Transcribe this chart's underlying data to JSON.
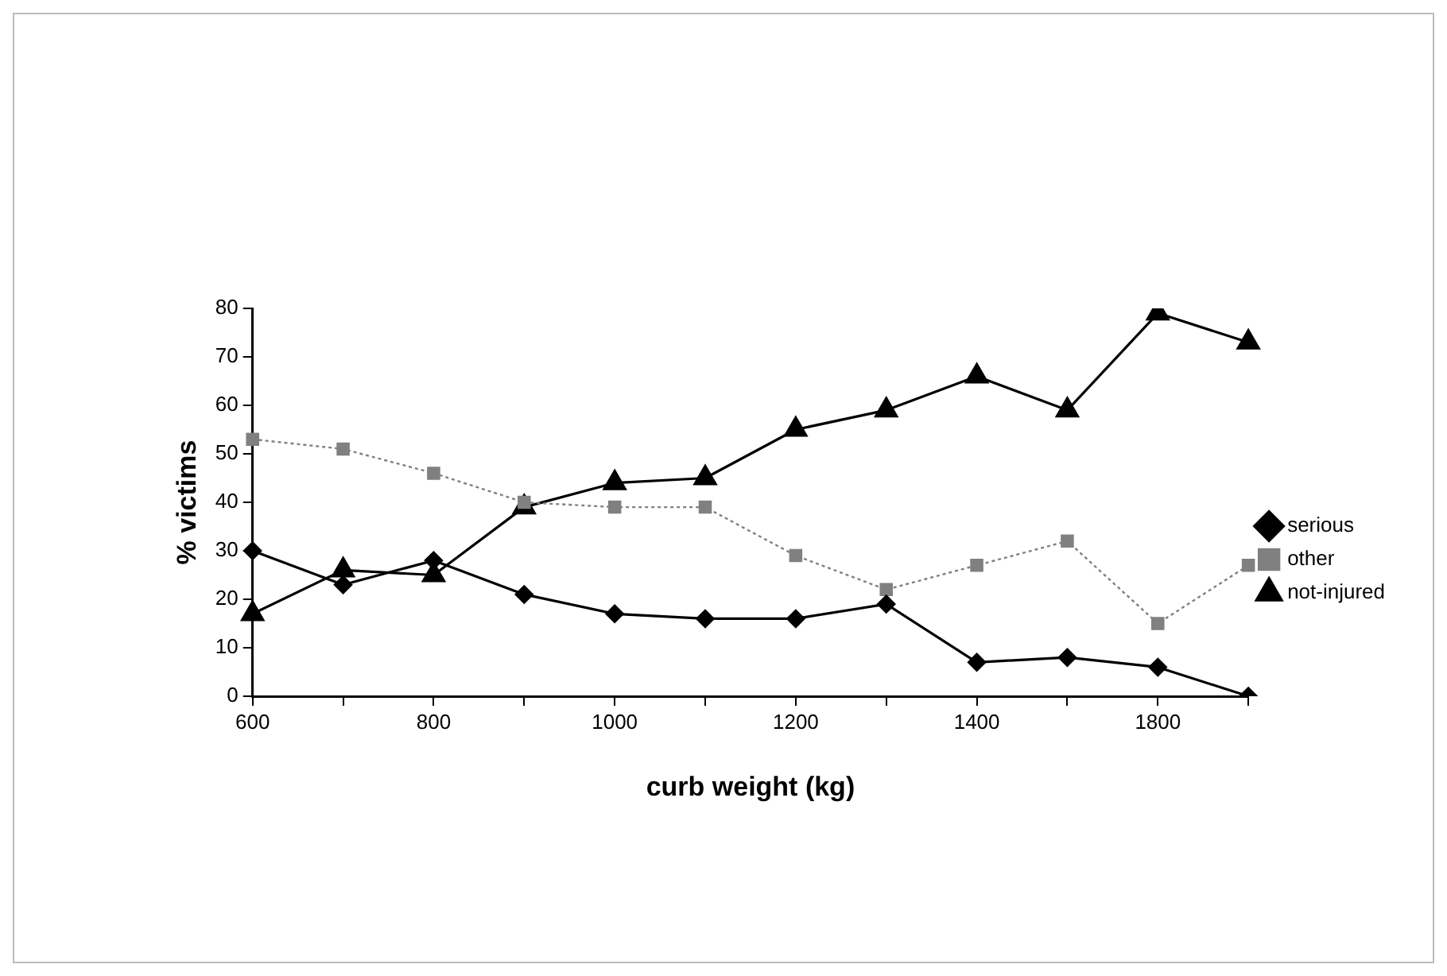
{
  "chart_data": {
    "type": "line",
    "xlabel": "curb weight (kg)",
    "ylabel": "% victims",
    "categories": [
      "600",
      null,
      "800",
      null,
      "1000",
      null,
      "1200",
      null,
      "1400",
      null,
      "1800",
      null
    ],
    "series": [
      {
        "name": "serious",
        "color": "#000000",
        "marker": "diamond",
        "line_style": "solid",
        "values": [
          30,
          23,
          28,
          21,
          17,
          16,
          16,
          19,
          7,
          8,
          6,
          0
        ]
      },
      {
        "name": "other",
        "color": "#808080",
        "marker": "square",
        "line_style": "dotted",
        "values": [
          53,
          51,
          46,
          40,
          39,
          39,
          29,
          22,
          27,
          32,
          15,
          27
        ]
      },
      {
        "name": "not-injured",
        "color": "#000000",
        "marker": "triangle",
        "line_style": "solid",
        "values": [
          17,
          26,
          25,
          39,
          44,
          45,
          55,
          59,
          66,
          59,
          79,
          73
        ]
      }
    ],
    "ylim": [
      0,
      80
    ],
    "yticks": [
      0,
      10,
      20,
      30,
      40,
      50,
      60,
      70,
      80
    ],
    "grid": false,
    "legend": "right"
  }
}
